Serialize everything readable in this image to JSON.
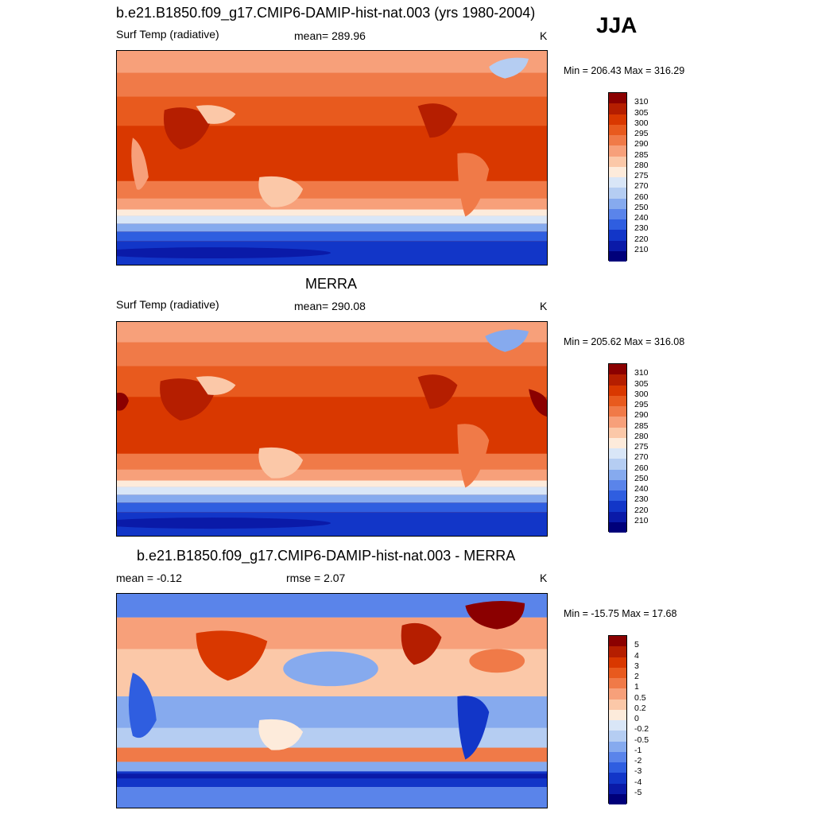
{
  "season": "JJA",
  "panels": [
    {
      "title": "b.e21.B1850.f09_g17.CMIP6-DAMIP-hist-nat.003 (yrs 1980-2004)",
      "left_label": "Surf Temp (radiative)",
      "center_label": "mean= 289.96",
      "units": "K",
      "minmax": "Min = 206.43 Max = 316.29",
      "colorbar": {
        "labels": [
          "310",
          "305",
          "300",
          "295",
          "290",
          "285",
          "280",
          "275",
          "270",
          "260",
          "250",
          "240",
          "230",
          "220",
          "210"
        ],
        "colors": [
          "#8b0000",
          "#b51e00",
          "#d93800",
          "#e85a1e",
          "#f07a48",
          "#f7a07a",
          "#fbc8a8",
          "#fdebdb",
          "#d9e6f7",
          "#b5cdf2",
          "#86aaee",
          "#5a84ea",
          "#2f5ee0",
          "#1236c8",
          "#0a1aa8",
          "#00007a"
        ]
      }
    },
    {
      "title": "MERRA",
      "left_label": "Surf Temp (radiative)",
      "center_label": "mean= 290.08",
      "units": "K",
      "minmax": "Min = 205.62 Max = 316.08",
      "colorbar": {
        "labels": [
          "310",
          "305",
          "300",
          "295",
          "290",
          "285",
          "280",
          "275",
          "270",
          "260",
          "250",
          "240",
          "230",
          "220",
          "210"
        ],
        "colors": [
          "#8b0000",
          "#b51e00",
          "#d93800",
          "#e85a1e",
          "#f07a48",
          "#f7a07a",
          "#fbc8a8",
          "#fdebdb",
          "#d9e6f7",
          "#b5cdf2",
          "#86aaee",
          "#5a84ea",
          "#2f5ee0",
          "#1236c8",
          "#0a1aa8",
          "#00007a"
        ]
      }
    },
    {
      "title": "b.e21.B1850.f09_g17.CMIP6-DAMIP-hist-nat.003 - MERRA",
      "left_label": "mean =  -0.12",
      "center_label": "rmse =   2.07",
      "units": "K",
      "minmax": "Min = -15.75 Max =  17.68",
      "colorbar": {
        "labels": [
          "5",
          "4",
          "3",
          "2",
          "1",
          "0.5",
          "0.2",
          "0",
          "-0.2",
          "-0.5",
          "-1",
          "-2",
          "-3",
          "-4",
          "-5"
        ],
        "colors": [
          "#8b0000",
          "#b51e00",
          "#d93800",
          "#e85a1e",
          "#f07a48",
          "#f7a07a",
          "#fbc8a8",
          "#fdebdb",
          "#d9e6f7",
          "#b5cdf2",
          "#86aaee",
          "#5a84ea",
          "#2f5ee0",
          "#1236c8",
          "#0a1aa8",
          "#00007a"
        ]
      }
    }
  ]
}
